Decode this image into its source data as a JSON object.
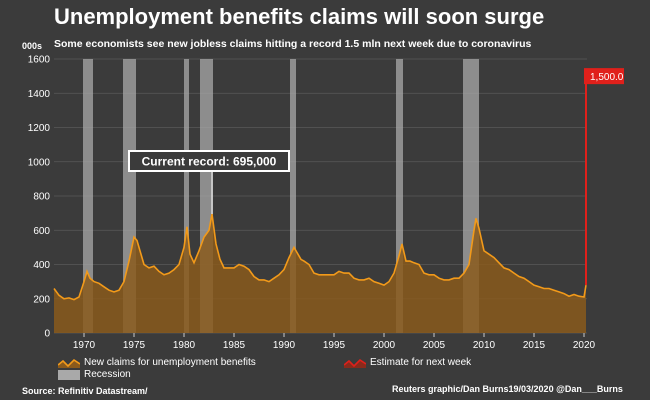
{
  "header": {
    "title": "Unemployment benefits claims will soon surge",
    "subtitle": "Some economists see new jobless claims hitting a record 1.5 mln next week due to coronavirus",
    "units": "000s"
  },
  "footer": {
    "source": "Source: Refinitiv Datastream/",
    "credit": "Reuters graphic/Dan Burns19/03/2020 @Dan___Burns"
  },
  "legend": {
    "claims": "New claims for unemployment benefits",
    "recession": "Recession",
    "estimate": "Estimate for next week"
  },
  "colors": {
    "background": "#3b3b3b",
    "area": "#8a5a1c",
    "line": "#f29a1a",
    "recession": "#a9a9a9",
    "estimate": "#e0201b",
    "grid": "#5a5a5a"
  },
  "chart_data": {
    "type": "area",
    "ylim": [
      0,
      1600
    ],
    "xlim": [
      1967,
      2020.3
    ],
    "yticks": [
      0,
      200,
      400,
      600,
      800,
      1000,
      1200,
      1400,
      1600
    ],
    "ytick_labels": [
      "0",
      "200",
      "400",
      "600",
      "800",
      "1000",
      "1200",
      "1400",
      "1600"
    ],
    "xticks": [
      1970,
      1975,
      1980,
      1985,
      1990,
      1995,
      2000,
      2005,
      2010,
      2015,
      2020
    ],
    "xtick_labels": [
      "1970",
      "1975",
      "1980",
      "1985",
      "1990",
      "1995",
      "2000",
      "2005",
      "2010",
      "2015",
      "2020"
    ],
    "series": [
      {
        "name": "New claims for unemployment benefits",
        "x": [
          1967.0,
          1967.5,
          1968.0,
          1968.5,
          1969.0,
          1969.5,
          1970.0,
          1970.3,
          1970.6,
          1971.0,
          1971.5,
          1972.0,
          1972.5,
          1973.0,
          1973.5,
          1974.0,
          1974.5,
          1975.0,
          1975.3,
          1975.6,
          1976.0,
          1976.5,
          1977.0,
          1977.5,
          1978.0,
          1978.5,
          1979.0,
          1979.5,
          1980.0,
          1980.3,
          1980.6,
          1981.0,
          1981.5,
          1982.0,
          1982.5,
          1982.8,
          1983.2,
          1983.6,
          1984.0,
          1984.5,
          1985.0,
          1985.5,
          1986.0,
          1986.5,
          1987.0,
          1987.5,
          1988.0,
          1988.5,
          1989.0,
          1989.5,
          1990.0,
          1990.5,
          1991.0,
          1991.3,
          1991.7,
          1992.0,
          1992.5,
          1993.0,
          1993.5,
          1994.0,
          1994.5,
          1995.0,
          1995.5,
          1996.0,
          1996.5,
          1997.0,
          1997.5,
          1998.0,
          1998.5,
          1999.0,
          1999.5,
          2000.0,
          2000.5,
          2001.0,
          2001.5,
          2001.8,
          2002.2,
          2002.6,
          2003.0,
          2003.5,
          2004.0,
          2004.5,
          2005.0,
          2005.5,
          2006.0,
          2006.5,
          2007.0,
          2007.5,
          2008.0,
          2008.5,
          2009.0,
          2009.2,
          2009.5,
          2010.0,
          2010.5,
          2011.0,
          2011.5,
          2012.0,
          2012.5,
          2013.0,
          2013.5,
          2014.0,
          2014.5,
          2015.0,
          2015.5,
          2016.0,
          2016.5,
          2017.0,
          2017.5,
          2018.0,
          2018.5,
          2019.0,
          2019.5,
          2020.0,
          2020.2
        ],
        "values": [
          260,
          220,
          200,
          205,
          195,
          210,
          300,
          360,
          320,
          300,
          290,
          270,
          250,
          240,
          250,
          300,
          420,
          560,
          540,
          480,
          400,
          380,
          390,
          360,
          340,
          350,
          370,
          400,
          500,
          620,
          460,
          410,
          480,
          560,
          600,
          695,
          520,
          430,
          380,
          380,
          380,
          400,
          390,
          370,
          330,
          310,
          310,
          300,
          320,
          340,
          370,
          440,
          500,
          470,
          430,
          420,
          400,
          350,
          340,
          340,
          340,
          340,
          360,
          350,
          350,
          320,
          310,
          310,
          320,
          300,
          290,
          280,
          300,
          350,
          450,
          520,
          420,
          420,
          410,
          400,
          350,
          340,
          340,
          320,
          310,
          310,
          320,
          320,
          350,
          400,
          600,
          670,
          610,
          480,
          460,
          440,
          410,
          380,
          370,
          350,
          330,
          320,
          300,
          280,
          270,
          260,
          260,
          250,
          240,
          230,
          215,
          225,
          215,
          210,
          280
        ]
      },
      {
        "name": "Estimate for next week",
        "x": [
          2020.2
        ],
        "values": [
          1500
        ]
      }
    ],
    "recessions": [
      [
        1969.9,
        1970.9
      ],
      [
        1973.9,
        1975.2
      ],
      [
        1980.0,
        1980.5
      ],
      [
        1981.6,
        1982.9
      ],
      [
        1990.6,
        1991.2
      ],
      [
        2001.2,
        2001.9
      ],
      [
        2007.9,
        2009.5
      ]
    ],
    "annotations": {
      "record": "Current record: 695,000",
      "estimate_label": "1,500.0"
    }
  }
}
